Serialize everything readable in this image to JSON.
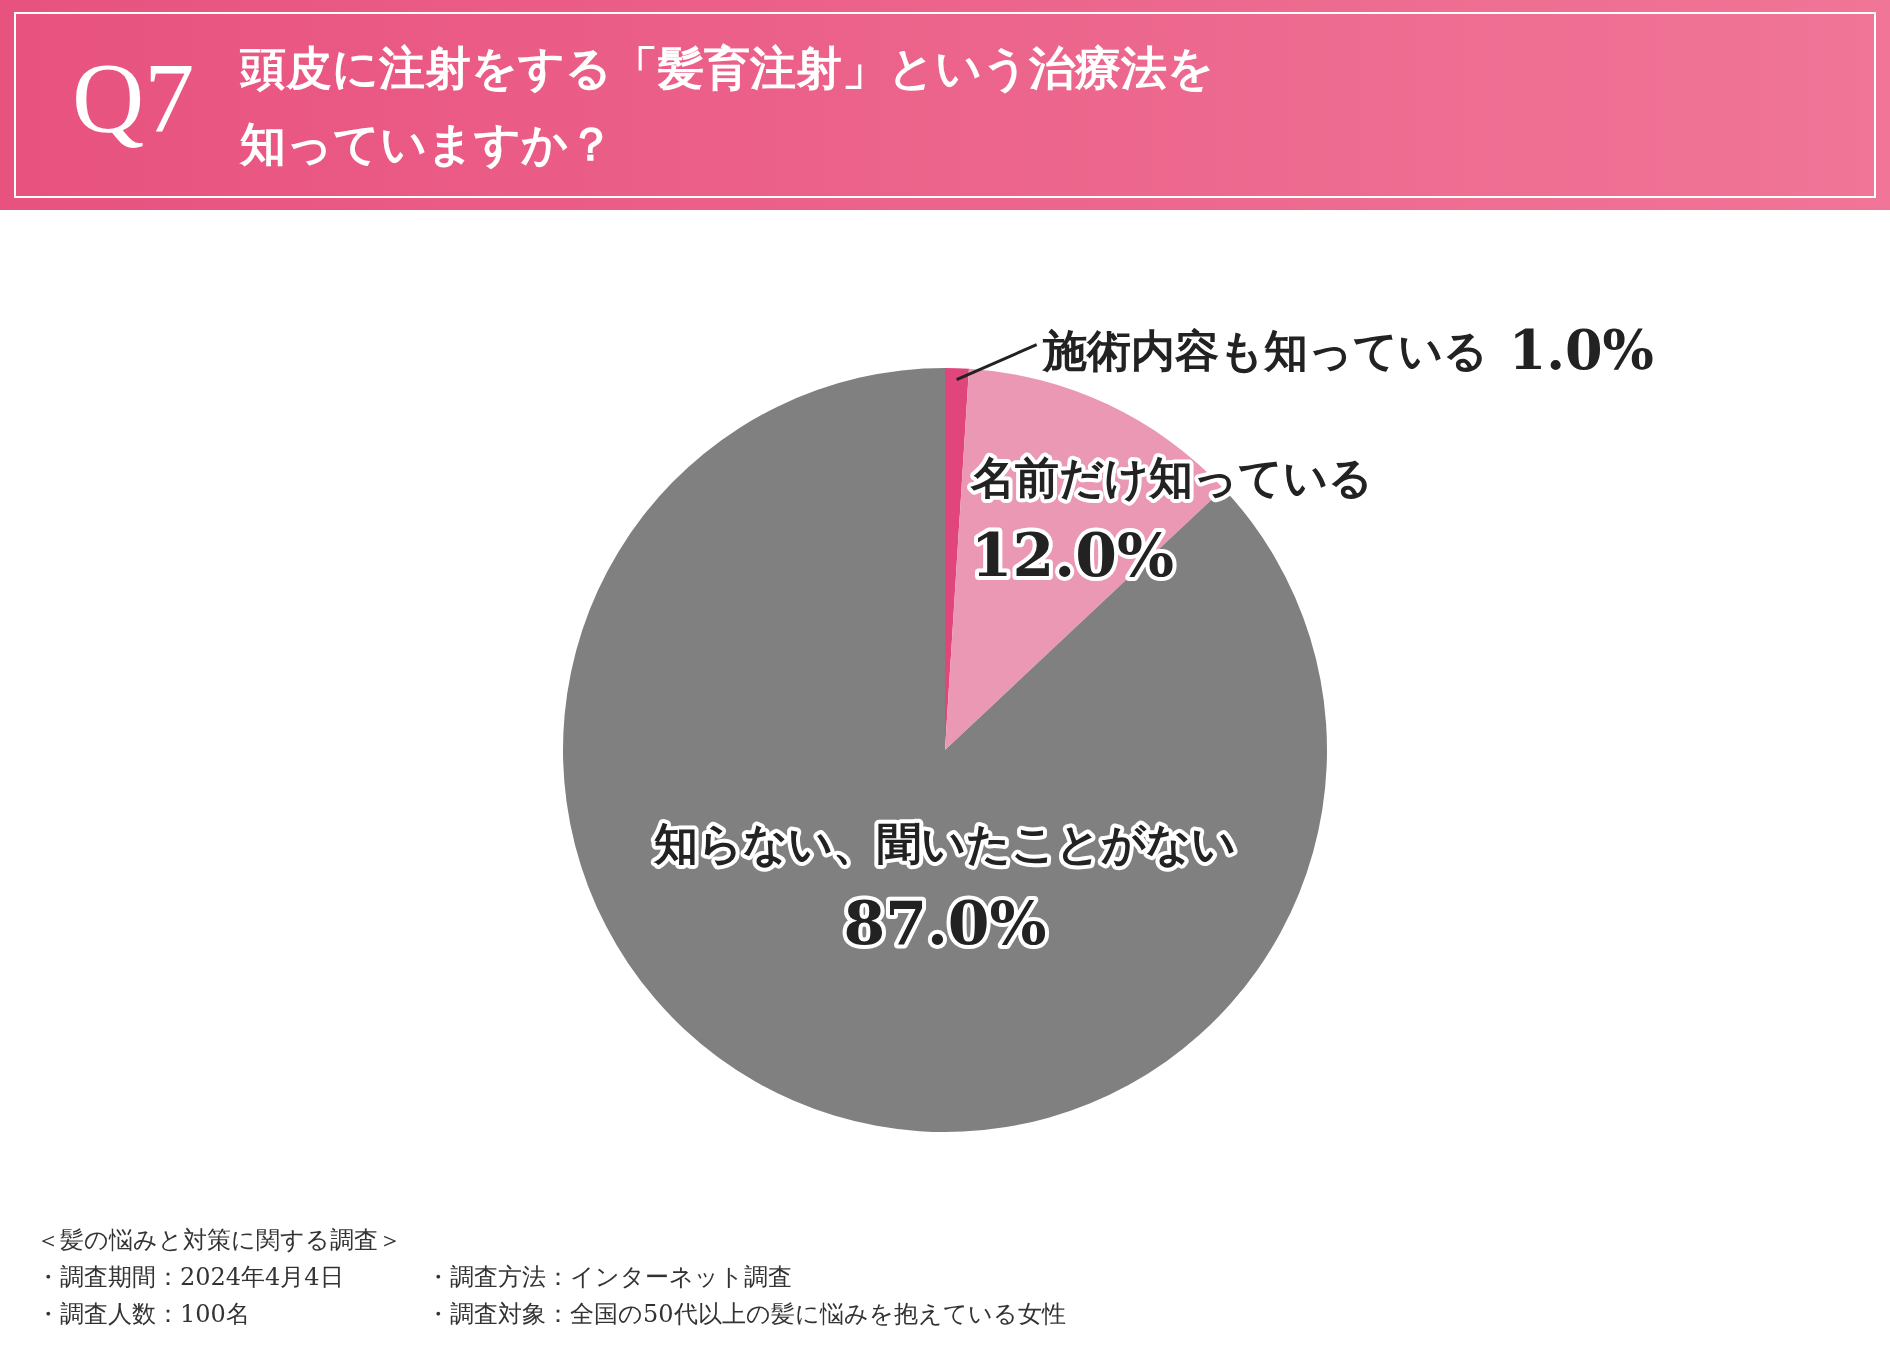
{
  "chart_data": {
    "type": "pie",
    "title": "Q7",
    "subtitle": "頭皮に注射をする「髪育注射」という治療法を知っていますか？",
    "categories": [
      "施術内容も知っている",
      "名前だけ知っている",
      "知らない、聞いたことがない"
    ],
    "values": [
      1.0,
      12.0,
      87.0
    ],
    "value_labels": [
      "1.0%",
      "12.0%",
      "87.0%"
    ],
    "colors": [
      "#e0457b",
      "#eb98b4",
      "#808080"
    ],
    "annotations": [
      "＜髪の悩みと対策に関する調査＞",
      "・調査期間：2024年4月4日",
      "・調査方法：インターネット調査",
      "・調査人数：100名",
      "・調査対象：全国の50代以上の髪に悩みを抱えている女性"
    ]
  }
}
